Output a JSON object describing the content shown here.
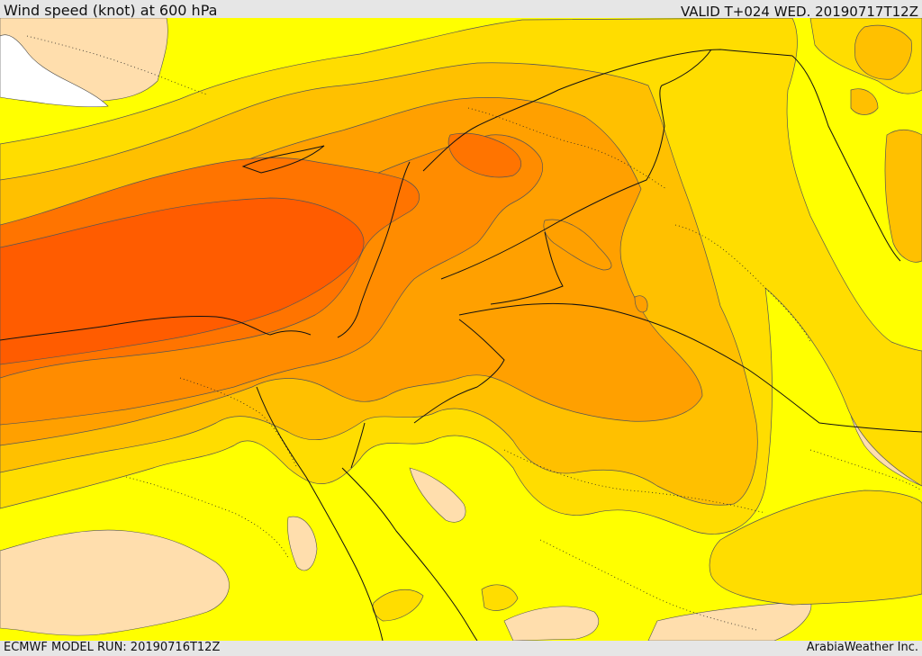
{
  "header": {
    "title": "Wind speed (knot) at 600 hPa",
    "valid": "VALID T+024 WED. 20190717T12Z"
  },
  "footer": {
    "model_run": "ECMWF MODEL RUN: 20190716T12Z",
    "brand": "ArabiaWeather Inc."
  },
  "map": {
    "field": "wind speed",
    "unit": "knot",
    "level": "600 hPa",
    "fill_colors": [
      "#ffdead",
      "#ffff00",
      "#ffdd00",
      "#ffc000",
      "#ffa000",
      "#ff8c00",
      "#ff7400",
      "#ff5c00"
    ]
  }
}
